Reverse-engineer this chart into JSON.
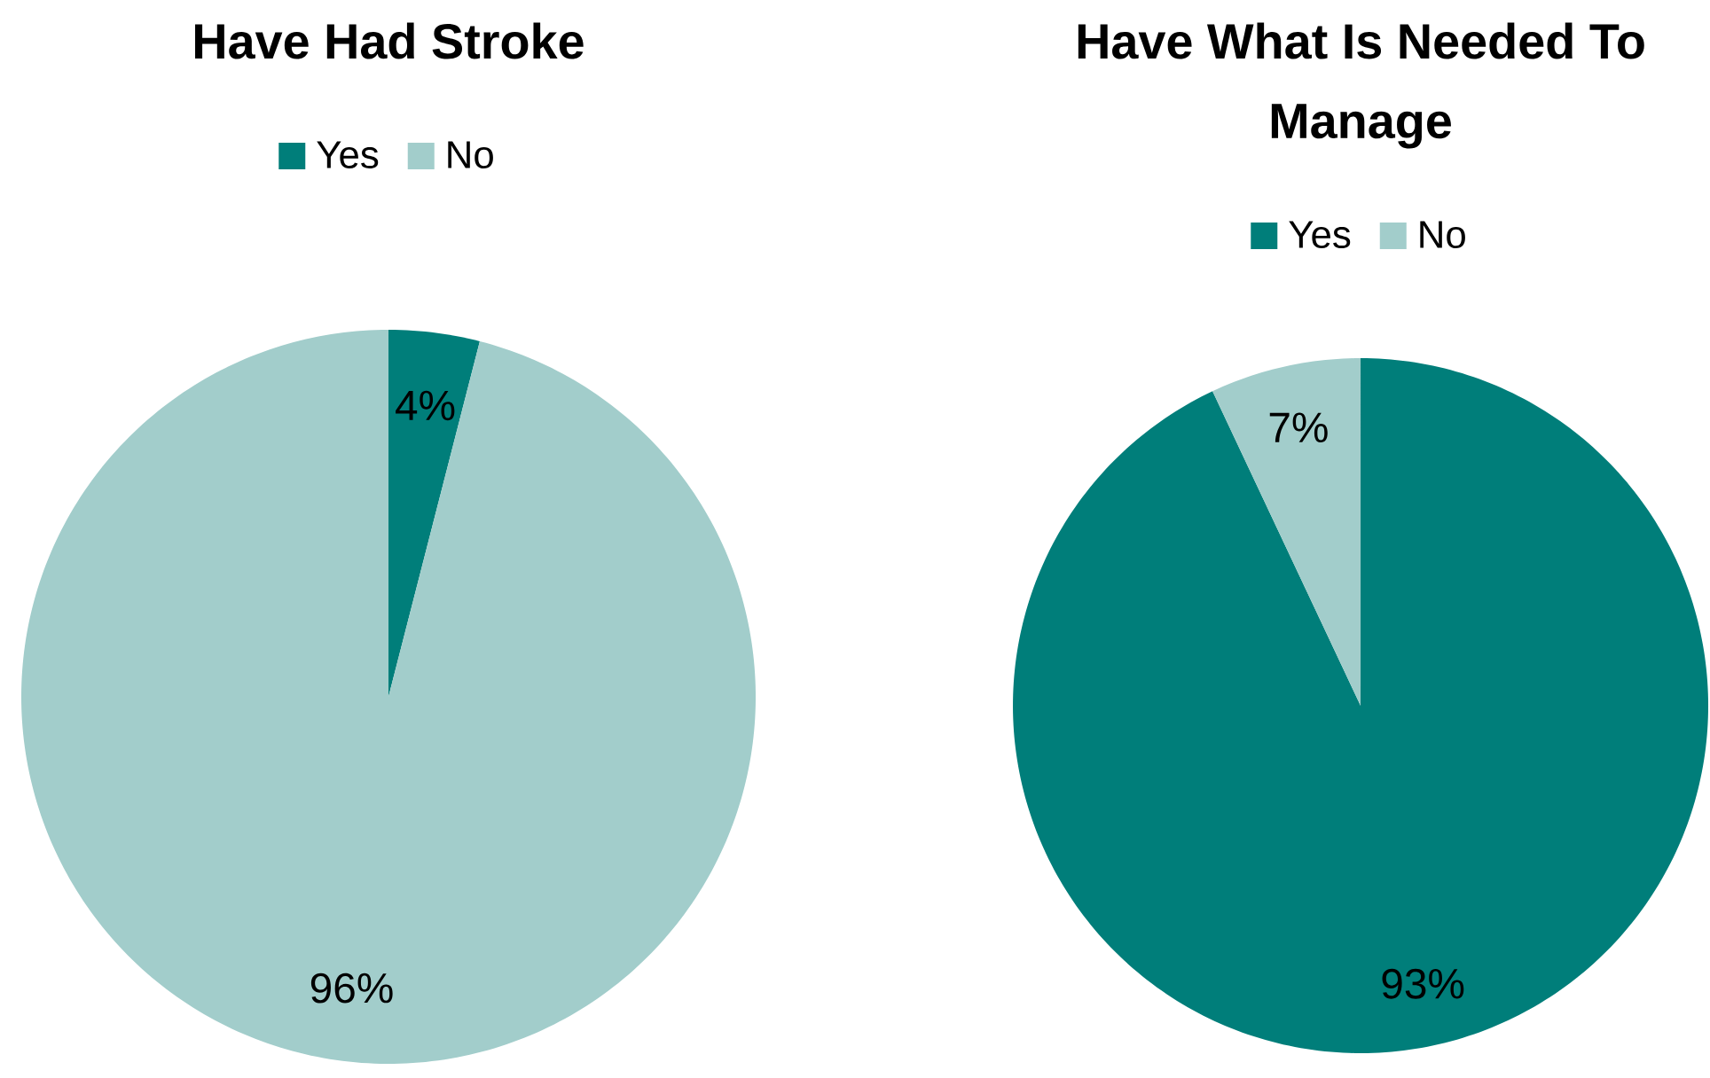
{
  "chart_data": [
    {
      "type": "pie",
      "title": "Have Had Stroke",
      "categories": [
        "Yes",
        "No"
      ],
      "values": [
        4,
        96
      ],
      "colors": [
        "#007e7a",
        "#a2cdcb"
      ],
      "value_labels": [
        "4%",
        "96%"
      ],
      "legend": "top"
    },
    {
      "type": "pie",
      "title": "Have What Is Needed To Manage",
      "categories": [
        "Yes",
        "No"
      ],
      "values": [
        93,
        7
      ],
      "colors": [
        "#007e7a",
        "#a2cdcb"
      ],
      "value_labels": [
        "93%",
        "7%"
      ],
      "legend": "top"
    }
  ]
}
